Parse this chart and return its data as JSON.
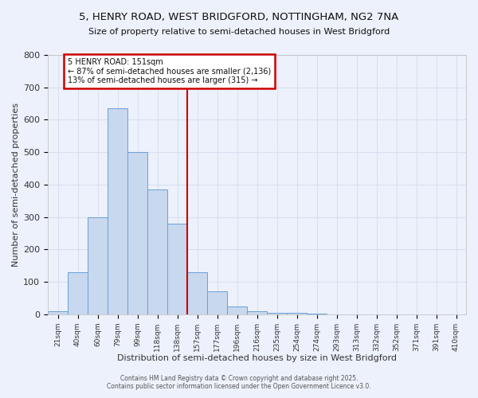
{
  "title_line1": "5, HENRY ROAD, WEST BRIDGFORD, NOTTINGHAM, NG2 7NA",
  "title_line2": "Size of property relative to semi-detached houses in West Bridgford",
  "xlabel": "Distribution of semi-detached houses by size in West Bridgford",
  "ylabel": "Number of semi-detached properties",
  "bar_labels": [
    "21sqm",
    "40sqm",
    "60sqm",
    "79sqm",
    "99sqm",
    "118sqm",
    "138sqm",
    "157sqm",
    "177sqm",
    "196sqm",
    "216sqm",
    "235sqm",
    "254sqm",
    "274sqm",
    "293sqm",
    "313sqm",
    "332sqm",
    "352sqm",
    "371sqm",
    "391sqm",
    "410sqm"
  ],
  "bar_values": [
    10,
    130,
    300,
    635,
    500,
    385,
    280,
    130,
    70,
    25,
    10,
    5,
    5,
    3,
    0,
    0,
    0,
    0,
    0,
    0,
    0
  ],
  "bar_color": "#c8d8ee",
  "bar_edge_color": "#6a9fd8",
  "vline_color": "#cc0000",
  "annotation_title": "5 HENRY ROAD: 151sqm",
  "annotation_line1": "← 87% of semi-detached houses are smaller (2,136)",
  "annotation_line2": "13% of semi-detached houses are larger (315) →",
  "box_edge_color": "#cc0000",
  "ylim": [
    0,
    800
  ],
  "yticks": [
    0,
    100,
    200,
    300,
    400,
    500,
    600,
    700,
    800
  ],
  "background_color": "#edf1fb",
  "grid_color": "#d8dff0",
  "footer_line1": "Contains HM Land Registry data © Crown copyright and database right 2025.",
  "footer_line2": "Contains public sector information licensed under the Open Government Licence v3.0."
}
